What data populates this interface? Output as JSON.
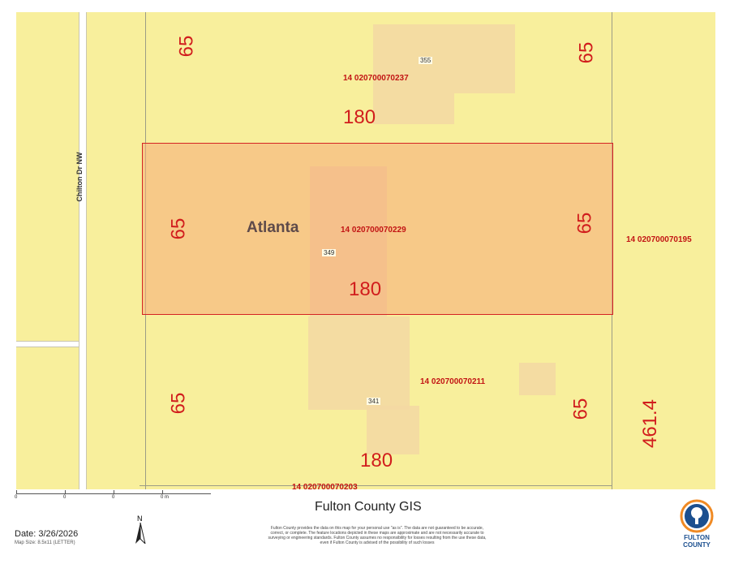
{
  "map": {
    "road_name": "Chilton Dr NW",
    "city_label": "Atlanta",
    "colors": {
      "background": "#f8ef9c",
      "selected_parcel": "#f6c58a",
      "selected_outline": "#d42323",
      "dimension_text": "#d11d1d"
    },
    "parcels": [
      {
        "id": "14 020700070237",
        "address": "355",
        "dims": {
          "left": "65",
          "right": "65",
          "bottom": "180"
        }
      },
      {
        "id": "14 020700070229",
        "address": "349",
        "dims": {
          "left": "65",
          "right": "65",
          "bottom": "180"
        },
        "selected": true
      },
      {
        "id": "14 020700070211",
        "address": "341",
        "dims": {
          "left": "65",
          "right": "65",
          "bottom": "180"
        }
      },
      {
        "id": "14 020700070195",
        "dims": {
          "right": "461.4"
        }
      },
      {
        "id": "14 020700070203"
      }
    ]
  },
  "footer": {
    "scale_ticks": [
      "0",
      "0",
      "0",
      "0 m"
    ],
    "title": "Fulton County GIS",
    "date": "Date: 3/26/2026",
    "map_scale": "Map Size: 8.5x11 (LETTER)",
    "north": "N",
    "disclaimer": "Fulton County provides the data on this map for your personal use \"as is\". The data are not guaranteed to be accurate, correct, or complete. The feature locations depicted in these maps are approximate and are not necessarily accurate to surveying or engineering standards. Fulton County assumes no responsibility for losses resulting from the use these data, even if Fulton County is advised of the possibility of such losses",
    "logo_text_1": "FULTON",
    "logo_text_2": "COUNTY"
  }
}
